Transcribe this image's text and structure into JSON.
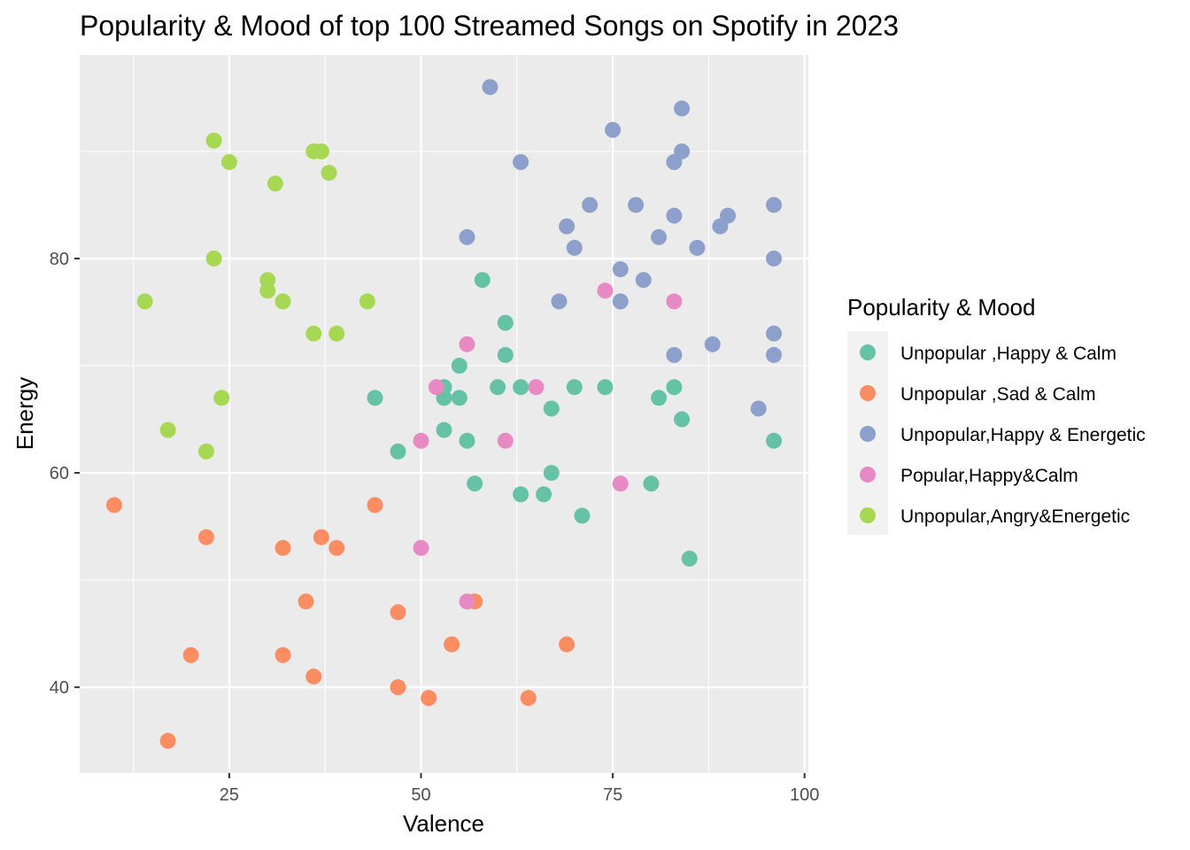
{
  "chart_data": {
    "type": "scatter",
    "title": "Popularity & Mood of top 100 Streamed Songs on Spotify in 2023",
    "xlabel": "Valence",
    "ylabel": "Energy",
    "xlim": [
      5.5,
      100.5
    ],
    "ylim": [
      32,
      99
    ],
    "x_ticks": [
      25,
      50,
      75,
      100
    ],
    "y_ticks": [
      40,
      60,
      80
    ],
    "grid": true,
    "legend_title": "Popularity & Mood",
    "legend_position": "right",
    "series": [
      {
        "name": "Unpopular ,Happy & Calm",
        "color": "#66c2a5",
        "points": [
          [
            58,
            78
          ],
          [
            61,
            74
          ],
          [
            55,
            70
          ],
          [
            61,
            71
          ],
          [
            53,
            68
          ],
          [
            53,
            67
          ],
          [
            55,
            67
          ],
          [
            60,
            68
          ],
          [
            63,
            68
          ],
          [
            70,
            68
          ],
          [
            74,
            68
          ],
          [
            83,
            68
          ],
          [
            44,
            67
          ],
          [
            81,
            67
          ],
          [
            67,
            66
          ],
          [
            84,
            65
          ],
          [
            53,
            64
          ],
          [
            56,
            63
          ],
          [
            96,
            63
          ],
          [
            47,
            62
          ],
          [
            67,
            60
          ],
          [
            57,
            59
          ],
          [
            80,
            59
          ],
          [
            63,
            58
          ],
          [
            66,
            58
          ],
          [
            71,
            56
          ],
          [
            85,
            52
          ]
        ]
      },
      {
        "name": "Unpopular ,Sad & Calm",
        "color": "#fc8d62",
        "points": [
          [
            10,
            57
          ],
          [
            44,
            57
          ],
          [
            22,
            54
          ],
          [
            37,
            54
          ],
          [
            32,
            53
          ],
          [
            39,
            53
          ],
          [
            35,
            48
          ],
          [
            57,
            48
          ],
          [
            47,
            47
          ],
          [
            54,
            44
          ],
          [
            69,
            44
          ],
          [
            20,
            43
          ],
          [
            32,
            43
          ],
          [
            36,
            41
          ],
          [
            47,
            40
          ],
          [
            51,
            39
          ],
          [
            64,
            39
          ],
          [
            17,
            35
          ]
        ]
      },
      {
        "name": "Unpopular,Happy & Energetic",
        "color": "#8da0cb",
        "points": [
          [
            59,
            96
          ],
          [
            84,
            94
          ],
          [
            75,
            92
          ],
          [
            84,
            90
          ],
          [
            63,
            89
          ],
          [
            83,
            89
          ],
          [
            72,
            85
          ],
          [
            78,
            85
          ],
          [
            96,
            85
          ],
          [
            83,
            84
          ],
          [
            90,
            84
          ],
          [
            69,
            83
          ],
          [
            89,
            83
          ],
          [
            56,
            82
          ],
          [
            81,
            82
          ],
          [
            70,
            81
          ],
          [
            86,
            81
          ],
          [
            96,
            80
          ],
          [
            76,
            79
          ],
          [
            79,
            78
          ],
          [
            68,
            76
          ],
          [
            76,
            76
          ],
          [
            96,
            73
          ],
          [
            88,
            72
          ],
          [
            83,
            71
          ],
          [
            96,
            71
          ],
          [
            94,
            66
          ]
        ]
      },
      {
        "name": "Popular,Happy&Calm",
        "color": "#e78ac3",
        "points": [
          [
            74,
            77
          ],
          [
            83,
            76
          ],
          [
            56,
            72
          ],
          [
            52,
            68
          ],
          [
            65,
            68
          ],
          [
            50,
            63
          ],
          [
            61,
            63
          ],
          [
            76,
            59
          ],
          [
            50,
            53
          ],
          [
            56,
            48
          ]
        ]
      },
      {
        "name": "Unpopular,Angry&Energetic",
        "color": "#a6d854",
        "points": [
          [
            23,
            91
          ],
          [
            36,
            90
          ],
          [
            37,
            90
          ],
          [
            25,
            89
          ],
          [
            38,
            88
          ],
          [
            31,
            87
          ],
          [
            23,
            80
          ],
          [
            30,
            78
          ],
          [
            30,
            77
          ],
          [
            14,
            76
          ],
          [
            32,
            76
          ],
          [
            43,
            76
          ],
          [
            36,
            73
          ],
          [
            39,
            73
          ],
          [
            24,
            67
          ],
          [
            17,
            64
          ],
          [
            22,
            62
          ]
        ]
      }
    ]
  }
}
